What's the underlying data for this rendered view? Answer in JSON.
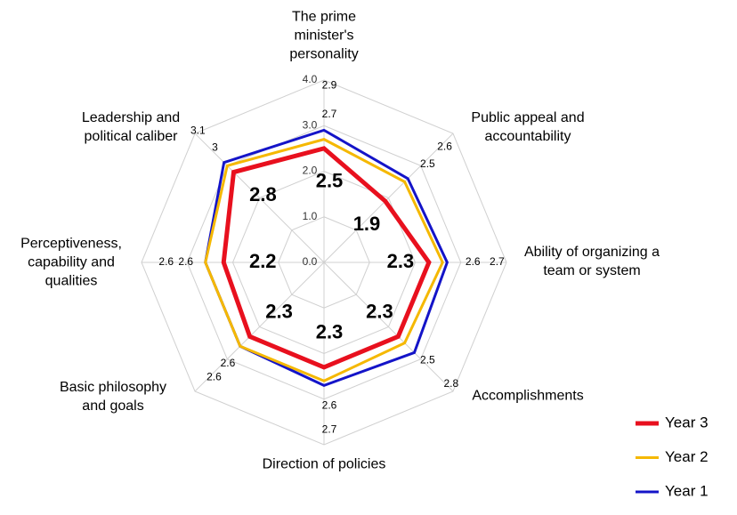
{
  "chart_data": {
    "type": "radar",
    "categories": [
      "The prime minister's personality",
      "Public appeal and accountability",
      "Ability of organizing a team or system",
      "Accomplishments",
      "Direction of policies",
      "Basic philosophy and goals",
      "Perceptiveness, capability and qualities",
      "Leadership and political caliber"
    ],
    "series": [
      {
        "name": "Year 3",
        "color": "#e8101e",
        "values": [
          2.5,
          1.9,
          2.3,
          2.3,
          2.3,
          2.3,
          2.2,
          2.8
        ]
      },
      {
        "name": "Year 2",
        "color": "#f5b800",
        "values": [
          2.7,
          2.5,
          2.6,
          2.5,
          2.6,
          2.6,
          2.6,
          3.0
        ]
      },
      {
        "name": "Year 1",
        "color": "#1414c8",
        "values": [
          2.9,
          2.6,
          2.7,
          2.8,
          2.7,
          2.6,
          2.6,
          3.1
        ]
      }
    ],
    "rlim": [
      0,
      4
    ],
    "rticks": [
      {
        "value": 0,
        "label": "0.0"
      },
      {
        "value": 1,
        "label": "1.0"
      },
      {
        "value": 2,
        "label": "2.0"
      },
      {
        "value": 3,
        "label": "3.0"
      },
      {
        "value": 4,
        "label": "4.0"
      }
    ],
    "grid": true
  }
}
